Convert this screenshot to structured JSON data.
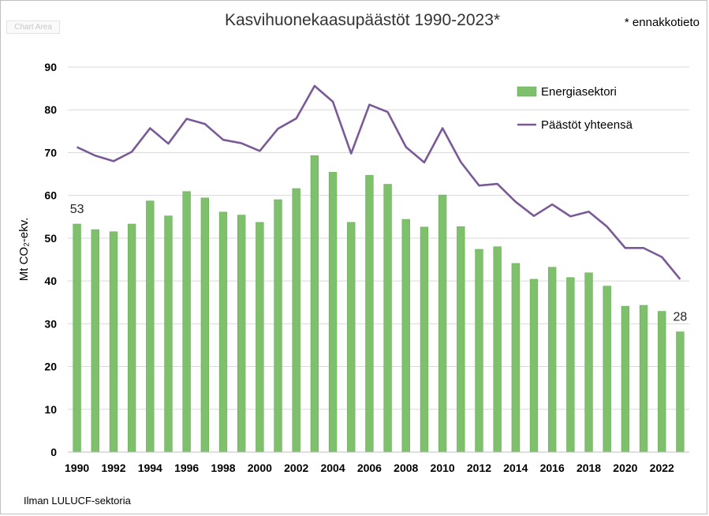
{
  "chart_area_label": "Chart Area",
  "prelim_note": "* ennakkotieto",
  "footnote": "Ilman LULUCF-sektoria",
  "colors": {
    "bar": "#7fc06c",
    "bar_edge": "#68ad55",
    "line": "#7a5a96",
    "grid": "#d9d9d9",
    "axis": "#bfbfbf"
  },
  "chart_data": {
    "type": "bar",
    "title": "Kasvihuonekaasupäästöt 1990-2023*",
    "ylabel": "Mt CO₂-ekv.",
    "xlabel": "",
    "ylim": [
      0,
      90
    ],
    "yticks": [
      "0",
      "10",
      "20",
      "30",
      "40",
      "50",
      "60",
      "70",
      "80",
      "90"
    ],
    "grid": true,
    "legend_position": "top-right",
    "x": [
      1990,
      1991,
      1992,
      1993,
      1994,
      1995,
      1996,
      1997,
      1998,
      1999,
      2000,
      2001,
      2002,
      2003,
      2004,
      2005,
      2006,
      2007,
      2008,
      2009,
      2010,
      2011,
      2012,
      2013,
      2014,
      2015,
      2016,
      2017,
      2018,
      2019,
      2020,
      2021,
      2022,
      2023
    ],
    "xtick_labels": [
      "1990",
      "1992",
      "1994",
      "1996",
      "1998",
      "2000",
      "2002",
      "2004",
      "2006",
      "2008",
      "2010",
      "2012",
      "2014",
      "2016",
      "2018",
      "2020",
      "2022"
    ],
    "series": [
      {
        "name": "Energiasektori",
        "type": "bar",
        "values": [
          53.3,
          52.0,
          51.5,
          53.3,
          58.7,
          55.2,
          60.9,
          59.4,
          56.1,
          55.4,
          53.7,
          59.0,
          61.6,
          69.3,
          65.4,
          53.7,
          64.7,
          62.6,
          54.4,
          52.6,
          60.1,
          52.7,
          47.4,
          48.0,
          44.1,
          40.4,
          43.2,
          40.8,
          41.9,
          38.8,
          34.1,
          34.3,
          32.9,
          28.1
        ]
      },
      {
        "name": "Päästöt yhteensä",
        "type": "line",
        "values": [
          71.3,
          69.3,
          68.0,
          70.2,
          75.7,
          72.1,
          77.9,
          76.7,
          73.0,
          72.2,
          70.4,
          75.6,
          78.0,
          85.6,
          81.9,
          69.8,
          81.2,
          79.5,
          71.3,
          67.7,
          75.7,
          67.8,
          62.3,
          62.7,
          58.5,
          55.2,
          57.9,
          55.1,
          56.2,
          52.7,
          47.7,
          47.7,
          45.6,
          40.4
        ]
      }
    ],
    "annotations": [
      {
        "year": 1990,
        "text": "53"
      },
      {
        "year": 2023,
        "text": "28"
      }
    ]
  }
}
